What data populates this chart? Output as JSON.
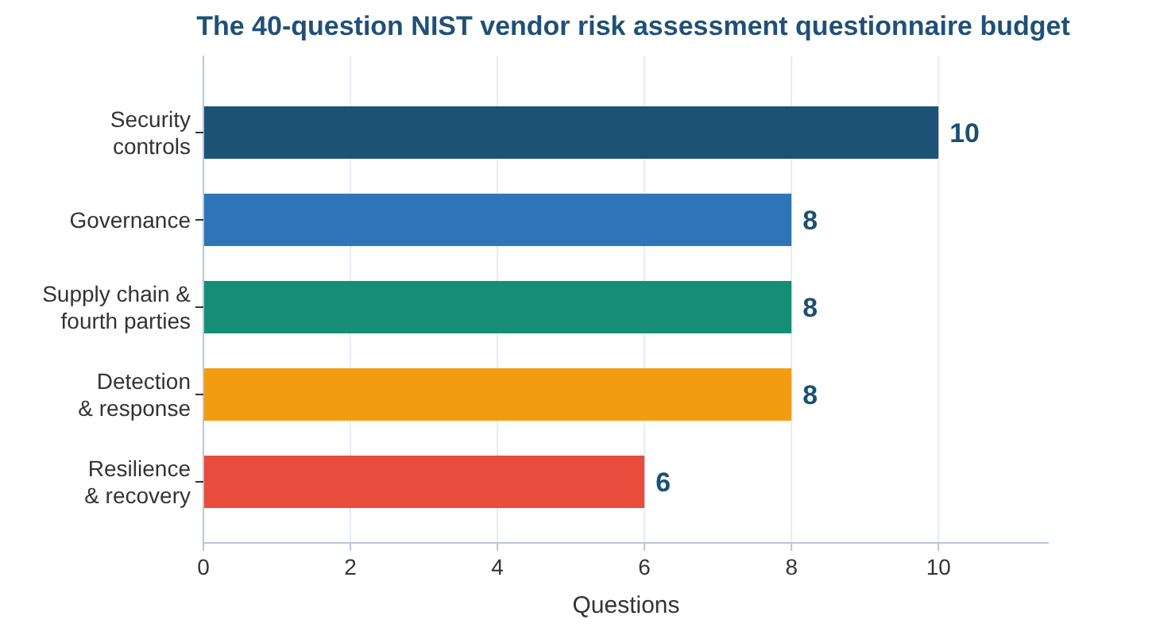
{
  "chart_data": {
    "type": "bar",
    "orientation": "horizontal",
    "title": "The 40-question NIST vendor risk assessment questionnaire budget",
    "xlabel": "Questions",
    "categories": [
      "Security controls",
      "Governance",
      "Supply chain & fourth parties",
      "Detection & response",
      "Resilience & recovery"
    ],
    "values": [
      10,
      8,
      8,
      8,
      6
    ],
    "colors": [
      "#1b5276",
      "#2e75b8",
      "#148f76",
      "#f39c12",
      "#e74c3c"
    ],
    "xlim": [
      0,
      11.5
    ],
    "xticks": [
      0,
      2,
      4,
      6,
      8,
      10
    ],
    "grid": "x",
    "data_labels": true
  }
}
